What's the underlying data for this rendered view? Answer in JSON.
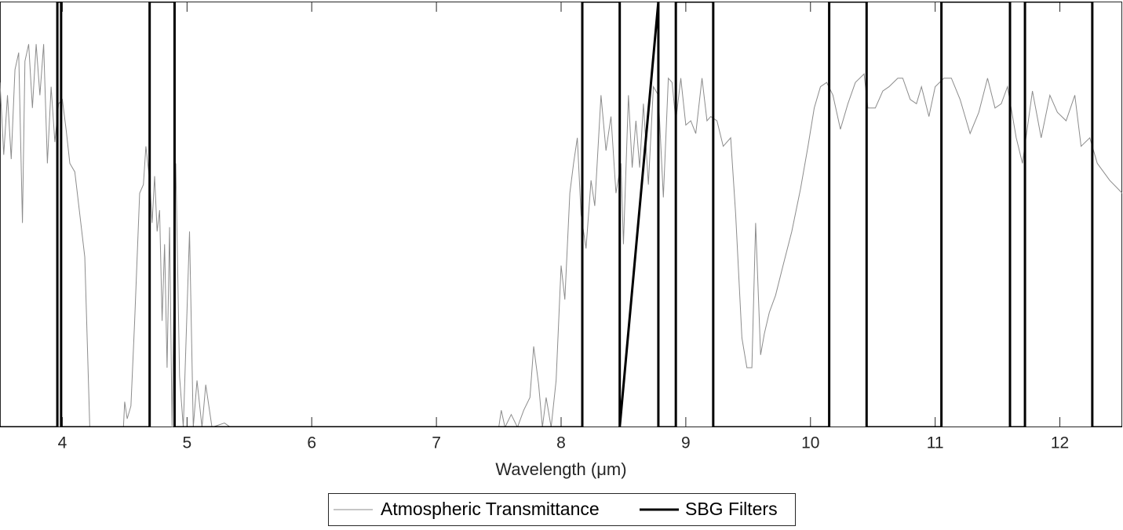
{
  "chart_data": {
    "type": "line",
    "xlabel": "Wavelength (μm)",
    "xlim": [
      3.5,
      12.5
    ],
    "xticks": [
      4,
      5,
      6,
      7,
      8,
      9,
      10,
      11,
      12
    ],
    "ylim": [
      0,
      1
    ],
    "legend": "bottom",
    "series": [
      {
        "name": "Atmospheric Transmittance",
        "color": "#8c8c8c",
        "width": 1,
        "x": [
          3.5,
          3.53,
          3.56,
          3.59,
          3.62,
          3.65,
          3.68,
          3.7,
          3.73,
          3.76,
          3.79,
          3.82,
          3.85,
          3.88,
          3.91,
          3.94,
          3.97,
          4.0,
          4.03,
          4.06,
          4.1,
          4.14,
          4.18,
          4.2,
          4.22,
          4.49,
          4.5,
          4.52,
          4.55,
          4.58,
          4.62,
          4.65,
          4.67,
          4.7,
          4.72,
          4.74,
          4.76,
          4.78,
          4.8,
          4.82,
          4.84,
          4.86,
          4.88,
          4.91,
          4.94,
          4.97,
          5.02,
          5.05,
          5.08,
          5.12,
          5.15,
          5.2,
          5.3,
          5.35,
          7.5,
          7.52,
          7.55,
          7.6,
          7.65,
          7.7,
          7.75,
          7.78,
          7.82,
          7.85,
          7.88,
          7.92,
          7.96,
          8.0,
          8.03,
          8.07,
          8.1,
          8.13,
          8.16,
          8.2,
          8.24,
          8.27,
          8.32,
          8.36,
          8.4,
          8.44,
          8.48,
          8.5,
          8.54,
          8.57,
          8.6,
          8.63,
          8.66,
          8.7,
          8.74,
          8.78,
          8.82,
          8.86,
          8.89,
          8.92,
          8.96,
          9.0,
          9.04,
          9.08,
          9.13,
          9.17,
          9.2,
          9.25,
          9.3,
          9.36,
          9.4,
          9.45,
          9.49,
          9.53,
          9.56,
          9.6,
          9.63,
          9.67,
          9.72,
          9.78,
          9.85,
          9.92,
          9.98,
          10.03,
          10.08,
          10.13,
          10.18,
          10.24,
          10.3,
          10.36,
          10.43,
          10.46,
          10.52,
          10.58,
          10.63,
          10.7,
          10.74,
          10.8,
          10.85,
          10.89,
          10.95,
          11.0,
          11.07,
          11.13,
          11.2,
          11.28,
          11.35,
          11.42,
          11.48,
          11.53,
          11.58,
          11.65,
          11.7,
          11.78,
          11.85,
          11.92,
          11.98,
          12.05,
          12.12,
          12.17,
          12.24,
          12.3,
          12.4,
          12.5
        ],
        "values": [
          0.81,
          0.64,
          0.78,
          0.63,
          0.84,
          0.88,
          0.48,
          0.86,
          0.9,
          0.75,
          0.9,
          0.78,
          0.9,
          0.62,
          0.8,
          0.67,
          0.76,
          0.77,
          0.7,
          0.62,
          0.6,
          0.5,
          0.4,
          0.2,
          0,
          0,
          0.06,
          0.02,
          0.05,
          0.25,
          0.55,
          0.57,
          0.66,
          0.58,
          0.48,
          0.59,
          0.46,
          0.51,
          0.25,
          0.43,
          0.14,
          0.47,
          0,
          0.62,
          0.12,
          0,
          0.46,
          0,
          0.11,
          0,
          0.1,
          0,
          0.01,
          0,
          0,
          0.04,
          0,
          0.03,
          0,
          0.04,
          0.07,
          0.19,
          0.1,
          0,
          0.07,
          0,
          0.11,
          0.38,
          0.3,
          0.55,
          0.62,
          0.68,
          0.5,
          0.42,
          0.58,
          0.52,
          0.78,
          0.65,
          0.73,
          0.55,
          0.62,
          0.43,
          0.78,
          0.61,
          0.72,
          0.61,
          0.76,
          0.57,
          0.8,
          0.78,
          0.54,
          0.82,
          0.81,
          0.72,
          0.82,
          0.71,
          0.72,
          0.69,
          0.82,
          0.72,
          0.73,
          0.72,
          0.66,
          0.68,
          0.5,
          0.21,
          0.14,
          0.14,
          0.48,
          0.17,
          0.22,
          0.27,
          0.31,
          0.38,
          0.46,
          0.56,
          0.66,
          0.75,
          0.8,
          0.81,
          0.78,
          0.7,
          0.76,
          0.81,
          0.83,
          0.75,
          0.75,
          0.79,
          0.8,
          0.82,
          0.82,
          0.77,
          0.76,
          0.8,
          0.73,
          0.8,
          0.82,
          0.82,
          0.77,
          0.69,
          0.74,
          0.82,
          0.75,
          0.76,
          0.8,
          0.68,
          0.62,
          0.79,
          0.68,
          0.78,
          0.74,
          0.72,
          0.78,
          0.66,
          0.68,
          0.62,
          0.58,
          0.55
        ]
      },
      {
        "name": "SBG Filters",
        "color": "#000000",
        "width": 3,
        "x": [
          3.5,
          3.96,
          3.96,
          3.99,
          3.99,
          4.7,
          4.7,
          4.9,
          4.9,
          8.17,
          8.17,
          8.47,
          8.47,
          8.78,
          8.78,
          8.92,
          8.92,
          9.22,
          9.22,
          10.15,
          10.15,
          10.45,
          10.45,
          11.05,
          11.05,
          11.6,
          11.6,
          11.72,
          11.72,
          12.26,
          12.26,
          12.5
        ],
        "values": [
          0,
          0,
          1,
          1,
          0,
          0,
          1,
          1,
          0,
          0,
          1,
          1,
          0,
          1,
          0,
          0,
          1,
          1,
          0,
          0,
          1,
          1,
          0,
          0,
          1,
          1,
          0,
          0,
          1,
          1,
          0,
          0
        ]
      }
    ]
  }
}
